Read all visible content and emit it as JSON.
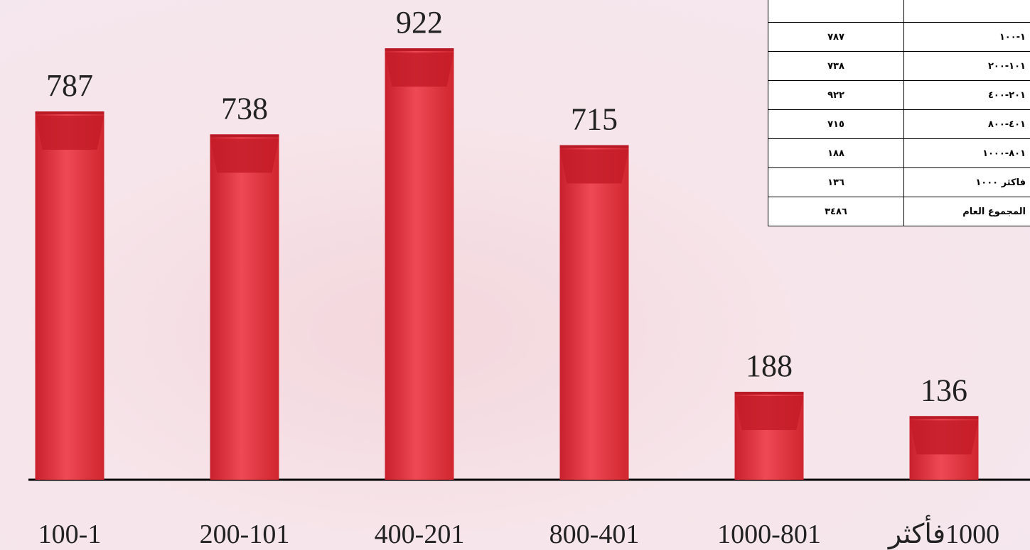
{
  "chart_data": {
    "type": "bar",
    "categories": [
      "100-1",
      "200-101",
      "400-201",
      "800-401",
      "1000-801",
      "1000فأكثر"
    ],
    "values": [
      787,
      738,
      922,
      715,
      188,
      136
    ],
    "color": "#e33a47"
  },
  "table": {
    "rows": [
      [
        "٧٨٧",
        "١٠٠-١"
      ],
      [
        "٧٣٨",
        "٢٠٠-١٠١"
      ],
      [
        "٩٢٢",
        "٤٠٠-٢٠١"
      ],
      [
        "٧١٥",
        "٨٠٠-٤٠١"
      ],
      [
        "١٨٨",
        "١٠٠٠-٨٠١"
      ],
      [
        "١٣٦",
        "فاكثر ١٠٠٠"
      ],
      [
        "٣٤٨٦",
        "المجموع العام"
      ]
    ]
  }
}
